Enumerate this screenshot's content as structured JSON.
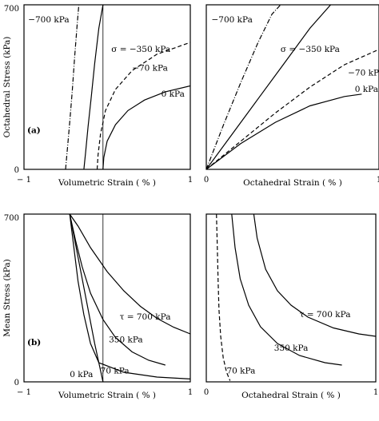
{
  "chart_data": [
    {
      "type": "line",
      "panel_tag": "(a)",
      "xlabel": "Volumetric Strain ( % )",
      "ylabel": "Octahedral Stress (kPa)",
      "xlim": [
        -1,
        1
      ],
      "ylim": [
        0,
        700
      ],
      "xticks": [
        "− 1",
        "1"
      ],
      "yticks": [
        "0",
        "700"
      ],
      "vline_x": -0.05,
      "series": [
        {
          "name": "−700 kPa",
          "style": "dashdot",
          "x": [
            -0.5,
            -0.48,
            -0.45,
            -0.42,
            -0.39,
            -0.36,
            -0.34
          ],
          "y": [
            0,
            80,
            200,
            330,
            480,
            620,
            700
          ]
        },
        {
          "name": "σ = −350 kPa",
          "style": "solid",
          "x": [
            -0.28,
            -0.26,
            -0.23,
            -0.19,
            -0.15,
            -0.1,
            -0.05
          ],
          "y": [
            0,
            70,
            180,
            310,
            450,
            600,
            700
          ]
        },
        {
          "name": "−70 kPa",
          "style": "dashed",
          "x": [
            -0.12,
            -0.11,
            -0.08,
            -0.02,
            0.1,
            0.3,
            0.6,
            1.0
          ],
          "y": [
            0,
            60,
            150,
            250,
            340,
            420,
            490,
            540
          ]
        },
        {
          "name": "0 kPa",
          "style": "solid",
          "x": [
            -0.05,
            -0.04,
            0.0,
            0.1,
            0.25,
            0.45,
            0.7,
            1.0
          ],
          "y": [
            0,
            50,
            120,
            190,
            250,
            295,
            330,
            355
          ]
        }
      ],
      "labels": [
        {
          "text": "−700 kPa",
          "x": -0.95,
          "y": 625
        },
        {
          "text": "σ = −350 kPa",
          "x": 0.05,
          "y": 500
        },
        {
          "text": "−70 kPa",
          "x": 0.3,
          "y": 420
        },
        {
          "text": "0 kPa",
          "x": 0.65,
          "y": 310
        }
      ]
    },
    {
      "type": "line",
      "panel_tag": "",
      "xlabel": "Octahedral Strain ( % )",
      "ylabel": "",
      "xlim": [
        0,
        1
      ],
      "ylim": [
        0,
        700
      ],
      "xticks": [
        "0",
        "1"
      ],
      "yticks": [],
      "series": [
        {
          "name": "−700 kPa",
          "style": "dashdot",
          "x": [
            0,
            0.1,
            0.2,
            0.3,
            0.38,
            0.43
          ],
          "y": [
            0,
            190,
            370,
            540,
            660,
            700
          ]
        },
        {
          "name": "σ = −350 kPa",
          "style": "solid",
          "x": [
            0,
            0.15,
            0.3,
            0.45,
            0.6,
            0.72
          ],
          "y": [
            0,
            150,
            300,
            450,
            600,
            700
          ]
        },
        {
          "name": "−70 kPa",
          "style": "dashed",
          "x": [
            0,
            0.2,
            0.4,
            0.6,
            0.8,
            1.0
          ],
          "y": [
            0,
            120,
            240,
            350,
            445,
            510
          ]
        },
        {
          "name": "0 kPa",
          "style": "solid",
          "x": [
            0,
            0.2,
            0.4,
            0.6,
            0.8,
            0.9
          ],
          "y": [
            0,
            110,
            200,
            270,
            310,
            320
          ]
        }
      ],
      "labels": [
        {
          "text": "−700 kPa",
          "x": 0.03,
          "y": 625
        },
        {
          "text": "σ = −350 kPa",
          "x": 0.43,
          "y": 500
        },
        {
          "text": "−70 kPa",
          "x": 0.82,
          "y": 400
        },
        {
          "text": "0 kPa",
          "x": 0.86,
          "y": 330
        }
      ]
    },
    {
      "type": "line",
      "panel_tag": "(b)",
      "xlabel": "Volumetric Strain ( % )",
      "ylabel": "Mean Stress (kPa)",
      "xlim": [
        -1,
        1
      ],
      "ylim": [
        0,
        700
      ],
      "xticks": [
        "− 1",
        "1"
      ],
      "yticks": [
        "0",
        "700"
      ],
      "vline_x": -0.05,
      "series": [
        {
          "name": "τ = 700 kPa",
          "style": "solid",
          "x": [
            -0.45,
            -0.35,
            -0.2,
            0.0,
            0.2,
            0.4,
            0.6,
            0.8,
            1.0
          ],
          "y": [
            700,
            650,
            560,
            460,
            380,
            315,
            265,
            228,
            200
          ]
        },
        {
          "name": "350 kPa",
          "style": "solid",
          "x": [
            -0.45,
            -0.38,
            -0.3,
            -0.2,
            -0.05,
            0.1,
            0.3,
            0.5,
            0.7
          ],
          "y": [
            700,
            590,
            480,
            370,
            260,
            185,
            125,
            90,
            70
          ]
        },
        {
          "name": "70 kPa",
          "style": "solid",
          "x": [
            -0.45,
            -0.4,
            -0.35,
            -0.28,
            -0.2,
            -0.1,
            0.2,
            0.6,
            1.0
          ],
          "y": [
            700,
            560,
            420,
            280,
            160,
            80,
            40,
            20,
            12
          ]
        },
        {
          "name": "0 kPa",
          "style": "solid",
          "x": [
            -0.45,
            -0.35,
            -0.25,
            -0.15,
            -0.05
          ],
          "y": [
            700,
            520,
            340,
            160,
            0
          ]
        }
      ],
      "labels": [
        {
          "text": "τ = 700 kPa",
          "x": 0.15,
          "y": 260
        },
        {
          "text": "350 kPa",
          "x": 0.02,
          "y": 165
        },
        {
          "text": "70 kPa",
          "x": -0.08,
          "y": 35
        },
        {
          "text": "0 kPa",
          "x": -0.45,
          "y": 20
        }
      ]
    },
    {
      "type": "line",
      "panel_tag": "",
      "xlabel": "Octahedral Strain ( % )",
      "ylabel": "",
      "xlim": [
        0,
        1
      ],
      "ylim": [
        0,
        700
      ],
      "xticks": [
        "0",
        "1"
      ],
      "yticks": [],
      "series": [
        {
          "name": "τ = 700 kPa",
          "style": "solid",
          "x": [
            0.28,
            0.3,
            0.35,
            0.42,
            0.5,
            0.6,
            0.75,
            0.9,
            1.0
          ],
          "y": [
            700,
            600,
            470,
            380,
            320,
            270,
            225,
            200,
            190
          ]
        },
        {
          "name": "350 kPa",
          "style": "solid",
          "x": [
            0.15,
            0.17,
            0.2,
            0.25,
            0.32,
            0.42,
            0.55,
            0.7,
            0.8
          ],
          "y": [
            700,
            560,
            430,
            320,
            230,
            160,
            110,
            80,
            70
          ]
        },
        {
          "name": "70 kPa",
          "style": "dashed",
          "x": [
            0.06,
            0.065,
            0.07,
            0.075,
            0.085,
            0.1,
            0.12,
            0.14
          ],
          "y": [
            700,
            560,
            420,
            300,
            190,
            100,
            40,
            5
          ]
        }
      ],
      "labels": [
        {
          "text": "τ = 700 kPa",
          "x": 0.55,
          "y": 270
        },
        {
          "text": "350 kPa",
          "x": 0.4,
          "y": 130
        },
        {
          "text": "70 kPa",
          "x": 0.12,
          "y": 35
        }
      ]
    }
  ]
}
